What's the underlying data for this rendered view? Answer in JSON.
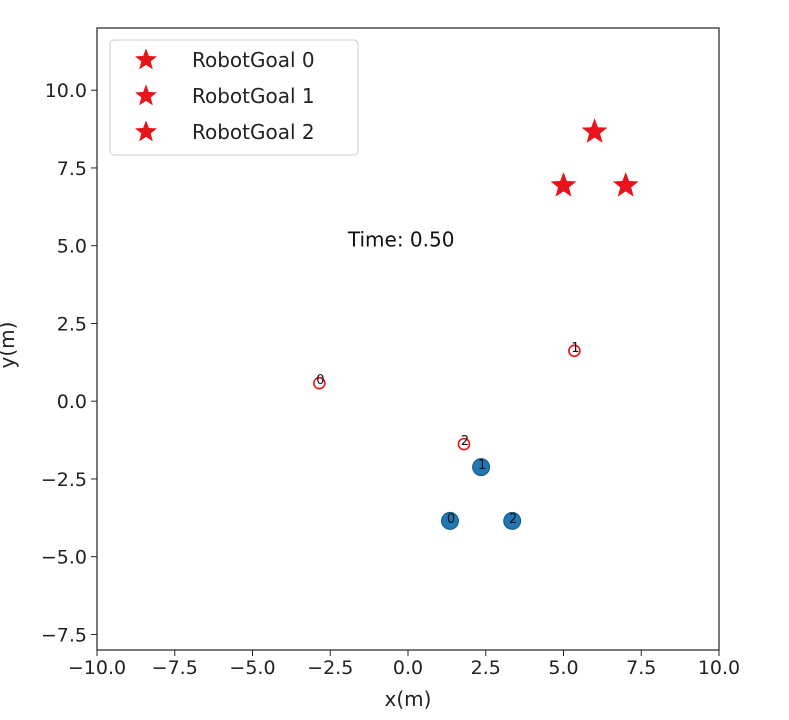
{
  "chart_data": {
    "type": "scatter",
    "xlabel": "x(m)",
    "ylabel": "y(m)",
    "xlim": [
      -10.0,
      10.0
    ],
    "ylim": [
      -8.0,
      12.0
    ],
    "xticks": [
      "−10.0",
      "−7.5",
      "−5.0",
      "−2.5",
      "0.0",
      "2.5",
      "5.0",
      "7.5",
      "10.0"
    ],
    "xtick_values": [
      -10,
      -7.5,
      -5,
      -2.5,
      0,
      2.5,
      5,
      7.5,
      10
    ],
    "yticks": [
      "−7.5",
      "−5.0",
      "−2.5",
      "0.0",
      "2.5",
      "5.0",
      "7.5",
      "10.0"
    ],
    "ytick_values": [
      -7.5,
      -5,
      -2.5,
      0,
      2.5,
      5,
      7.5,
      10
    ],
    "grid": false,
    "legend_position": "top-left",
    "annotation": {
      "text": "Time: 0.50",
      "x": -1.0,
      "y": 5.0
    },
    "series": [
      {
        "name": "RobotGoal 0",
        "marker": "star",
        "color": "#e8141b",
        "points": [
          {
            "x": 5.0,
            "y": 6.93
          }
        ]
      },
      {
        "name": "RobotGoal 1",
        "marker": "star",
        "color": "#e8141b",
        "points": [
          {
            "x": 6.0,
            "y": 8.66
          }
        ]
      },
      {
        "name": "RobotGoal 2",
        "marker": "star",
        "color": "#e8141b",
        "points": [
          {
            "x": 7.0,
            "y": 6.93
          }
        ]
      }
    ],
    "robots": [
      {
        "id": "0",
        "x": 1.35,
        "y": -3.85,
        "color": "#1f77b4"
      },
      {
        "id": "1",
        "x": 2.35,
        "y": -2.12,
        "color": "#1f77b4"
      },
      {
        "id": "2",
        "x": 3.35,
        "y": -3.85,
        "color": "#1f77b4"
      }
    ],
    "obstacles": [
      {
        "id": "0",
        "x": -2.85,
        "y": 0.58,
        "color": "#e8141b"
      },
      {
        "id": "1",
        "x": 5.35,
        "y": 1.62,
        "color": "#e8141b"
      },
      {
        "id": "2",
        "x": 1.8,
        "y": -1.38,
        "color": "#e8141b"
      }
    ]
  }
}
